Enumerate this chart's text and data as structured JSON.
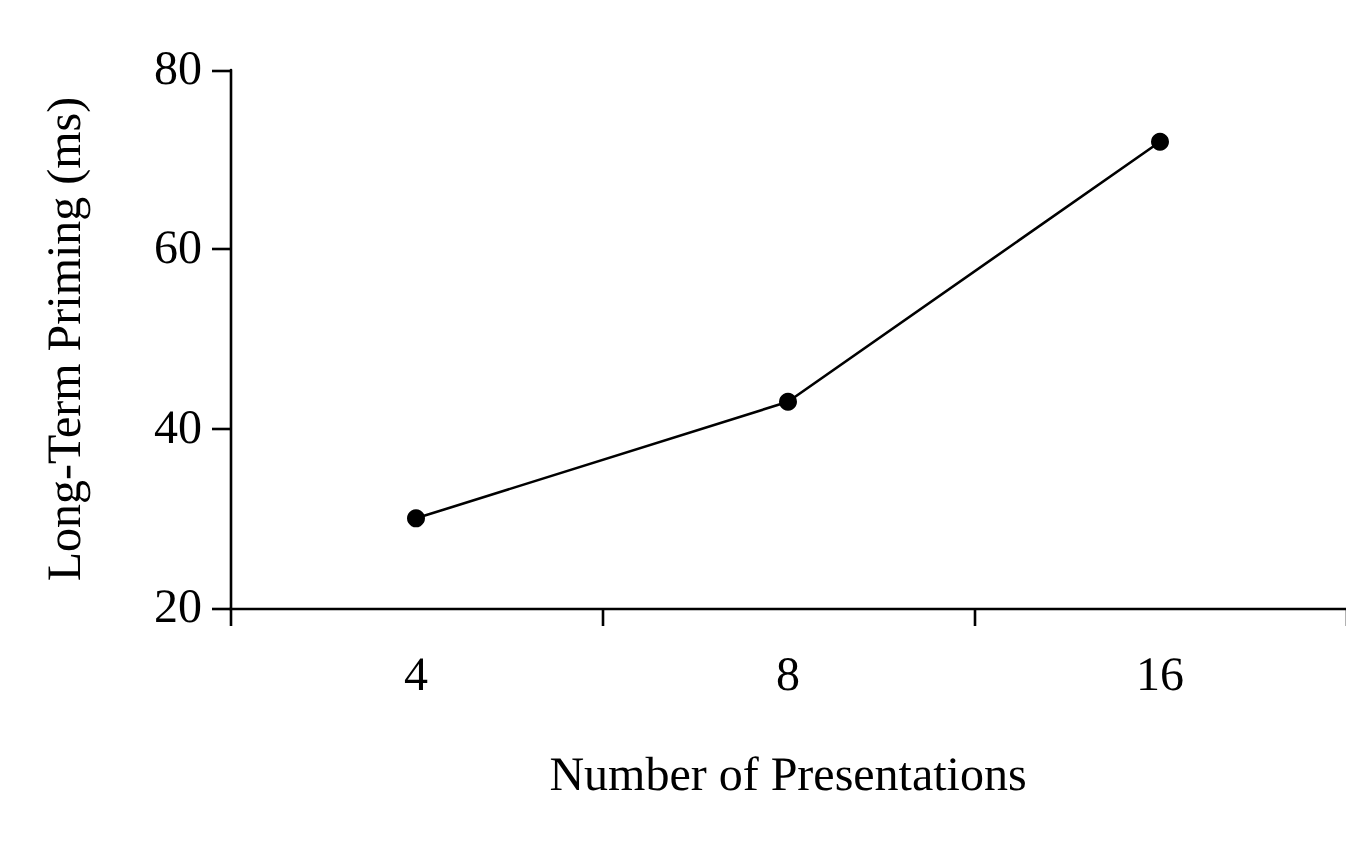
{
  "chart_data": {
    "type": "line",
    "xlabel": "Number of Presentations",
    "ylabel": "Long-Term Priming (ms)",
    "categories": [
      "4",
      "8",
      "16"
    ],
    "series": [
      {
        "color": "#000000",
        "values": [
          30,
          43,
          72
        ]
      }
    ],
    "ylim": [
      20,
      80
    ],
    "yticks": [
      20,
      40,
      60,
      80
    ],
    "grid": false,
    "marker": "circle",
    "line_style": "solid"
  }
}
